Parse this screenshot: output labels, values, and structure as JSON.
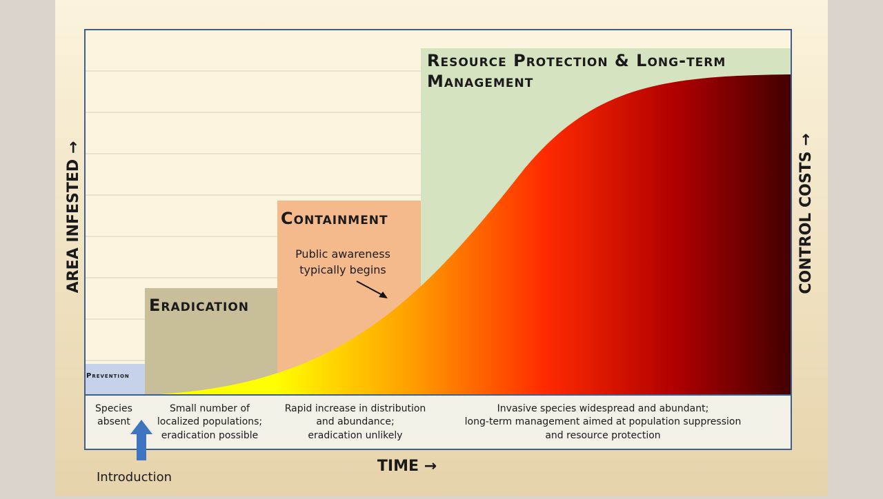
{
  "axes": {
    "y_left": "AREA INFESTED →",
    "y_right": "CONTROL COSTS →",
    "x": "TIME →"
  },
  "stages": [
    {
      "title": [
        "Prevention"
      ],
      "description": [
        "Species",
        "absent"
      ]
    },
    {
      "title": [
        "Eradication"
      ],
      "description": [
        "Small number of",
        "localized populations;",
        "eradication possible"
      ]
    },
    {
      "title": [
        "Containment"
      ],
      "description": [
        "Rapid increase in distribution",
        "and abundance;",
        "eradication unlikely"
      ]
    },
    {
      "title": [
        "Resource Protection & Long-term",
        "Management"
      ],
      "description": [
        "Invasive species widespread and abundant;",
        "long-term management aimed at population suppression",
        "and resource protection"
      ]
    }
  ],
  "annotation": [
    "Public awareness",
    "typically begins"
  ],
  "introduction": "Introduction"
}
